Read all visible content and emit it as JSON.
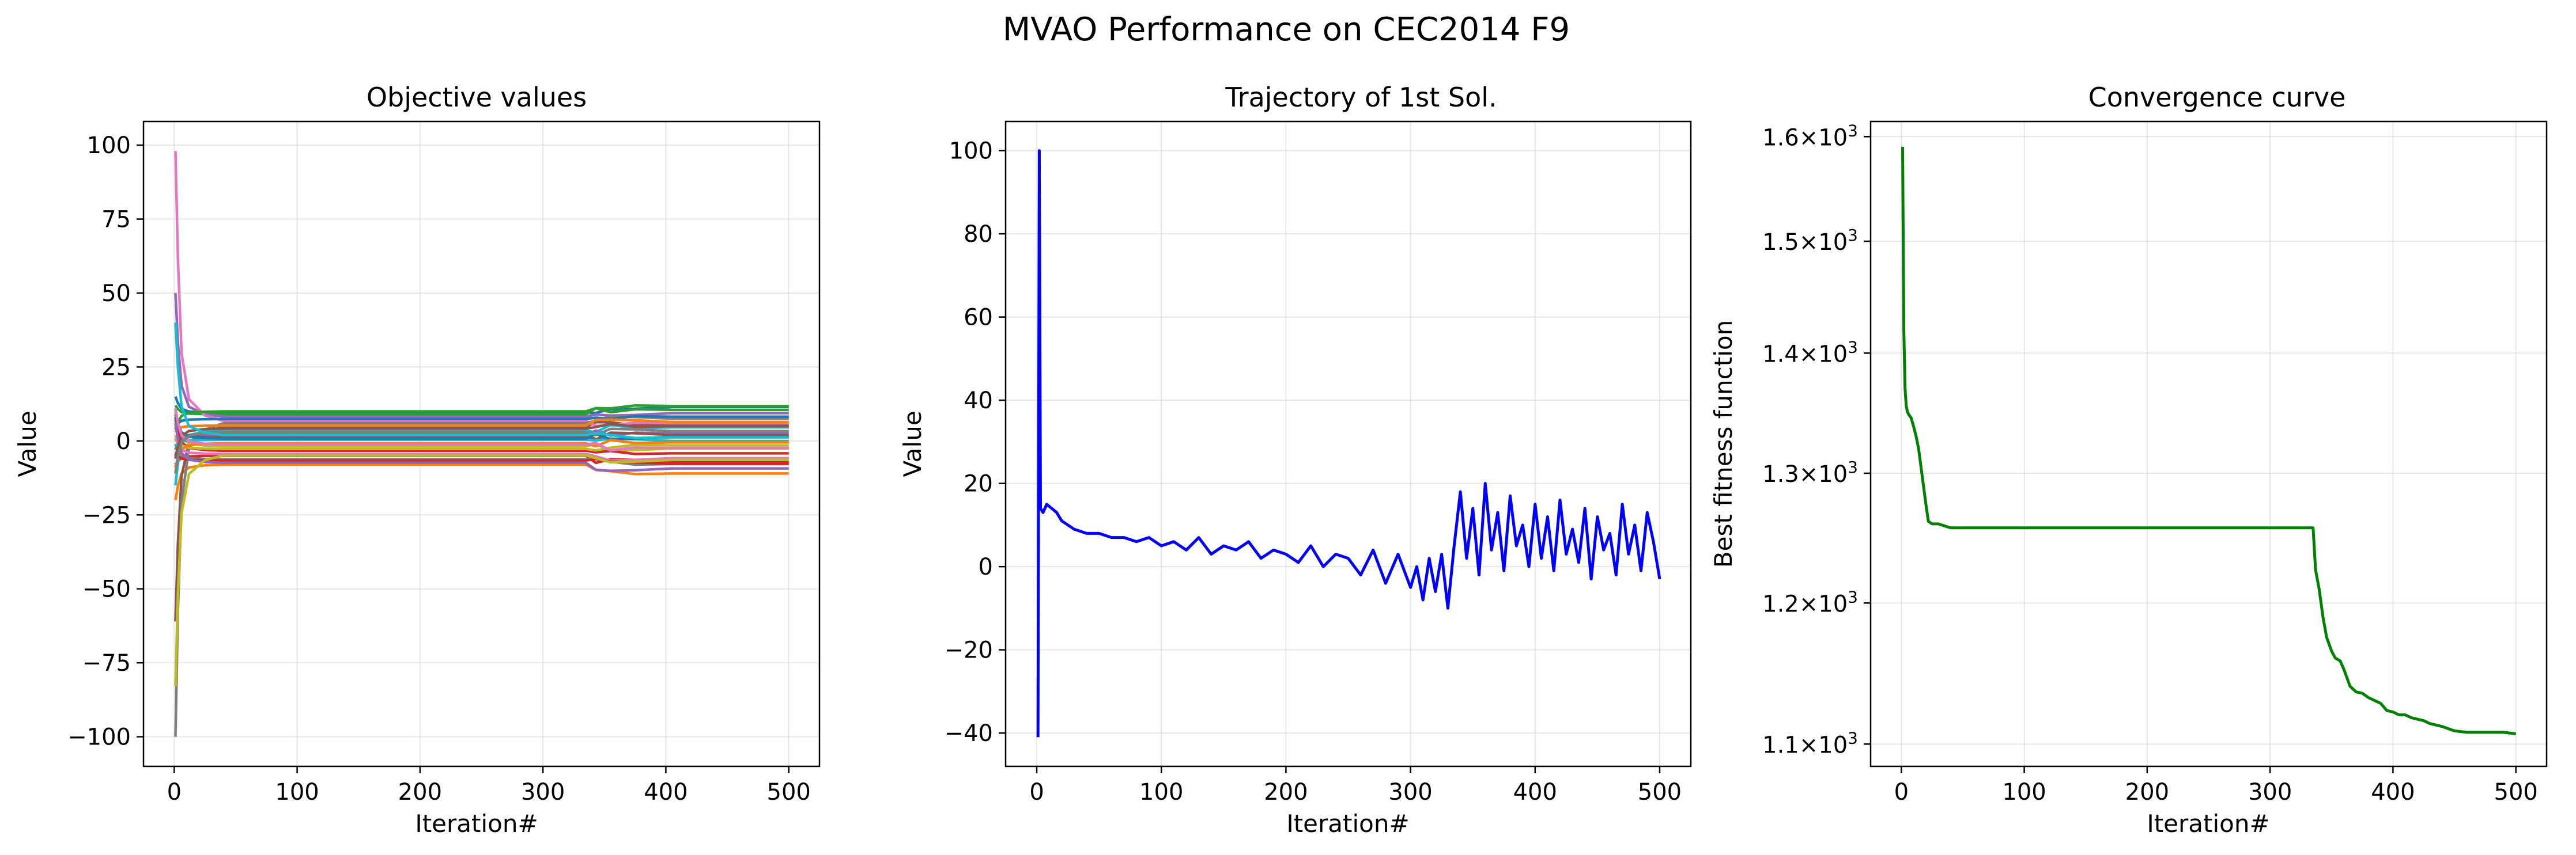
{
  "figure": {
    "suptitle": "MVAO Performance on CEC2014 F9"
  },
  "chart_data": [
    {
      "id": "objective",
      "type": "line",
      "title": "Objective values",
      "xlabel": "Iteration#",
      "ylabel": "Value",
      "xlim": [
        -25,
        525
      ],
      "ylim": [
        -110,
        108
      ],
      "xticks": [
        0,
        100,
        200,
        300,
        400,
        500
      ],
      "xtick_labels": [
        "0",
        "100",
        "200",
        "300",
        "400",
        "500"
      ],
      "yticks": [
        -100,
        -75,
        -50,
        -25,
        0,
        25,
        50,
        75,
        100
      ],
      "ytick_labels": [
        "−100",
        "−75",
        "−50",
        "−25",
        "0",
        "25",
        "50",
        "75",
        "100"
      ],
      "grid": true,
      "series_summary": {
        "dimensions": 30,
        "initial_values": [
          15,
          -20,
          12,
          -8,
          50,
          -61,
          98,
          -100,
          10,
          -15,
          5,
          3,
          -3,
          8,
          -5,
          7,
          1,
          -1,
          2,
          -2,
          9,
          -9,
          4,
          -4,
          6,
          -6,
          11,
          -11,
          -83,
          40
        ],
        "stage1_values": [
          9.5,
          -8,
          9,
          -5,
          8.2,
          4.7,
          6.8,
          6,
          -1.8,
          3.5,
          7.4,
          5.2,
          2.4,
          -3.3,
          1.9,
          1.2,
          -4.4,
          -6.2,
          -2.7,
          0.4,
          0.8,
          -0.8,
          10,
          -6.6,
          -7.4,
          4.2,
          -1.2,
          3,
          -4.9,
          2
        ],
        "final_values": [
          11.5,
          -11,
          10.5,
          -7,
          9.4,
          5.5,
          6,
          7.5,
          -2.5,
          4.6,
          8.2,
          6.4,
          1.4,
          -4.2,
          2.6,
          2,
          -5.8,
          -7.8,
          -1.5,
          0,
          1.4,
          -0.5,
          11.8,
          -7.8,
          -9.3,
          5,
          -2.4,
          3.3,
          -6.4,
          1.2
        ],
        "jump_iteration": 335,
        "colors": [
          "#1f77b4",
          "#ff7f0e",
          "#2ca02c",
          "#d62728",
          "#9467bd",
          "#8c564b",
          "#e377c2",
          "#7f7f7f",
          "#bcbd22",
          "#17becf"
        ]
      }
    },
    {
      "id": "trajectory",
      "type": "line",
      "title": "Trajectory of 1st Sol.",
      "xlabel": "Iteration#",
      "ylabel": "Value",
      "xlim": [
        -25,
        525
      ],
      "ylim": [
        -48,
        107
      ],
      "xticks": [
        0,
        100,
        200,
        300,
        400,
        500
      ],
      "xtick_labels": [
        "0",
        "100",
        "200",
        "300",
        "400",
        "500"
      ],
      "yticks": [
        -40,
        -20,
        0,
        20,
        40,
        60,
        80,
        100
      ],
      "ytick_labels": [
        "−40",
        "−20",
        "0",
        "20",
        "40",
        "60",
        "80",
        "100"
      ],
      "grid": true,
      "color": "#0000ff",
      "series": [
        {
          "x": [
            1,
            2,
            3,
            5,
            8,
            12,
            16,
            20,
            25,
            30,
            40,
            50,
            60,
            70,
            80,
            90,
            100,
            110,
            120,
            130,
            140,
            150,
            160,
            170,
            180,
            190,
            200,
            210,
            220,
            230,
            240,
            250,
            260,
            270,
            280,
            290,
            300,
            305,
            310,
            315,
            320,
            325,
            330,
            335,
            340,
            345,
            350,
            355,
            360,
            365,
            370,
            375,
            380,
            385,
            390,
            395,
            400,
            405,
            410,
            415,
            420,
            425,
            430,
            435,
            440,
            445,
            450,
            455,
            460,
            465,
            470,
            475,
            480,
            485,
            490,
            495,
            500
          ],
          "values": [
            -41,
            100,
            14,
            13,
            15,
            14,
            13,
            11,
            10,
            9,
            8,
            8,
            7,
            7,
            6,
            7,
            5,
            6,
            4,
            7,
            3,
            5,
            4,
            6,
            2,
            4,
            3,
            1,
            5,
            0,
            3,
            2,
            -2,
            4,
            -4,
            3,
            -5,
            0,
            -8,
            2,
            -6,
            3,
            -10,
            5,
            18,
            2,
            14,
            -2,
            20,
            4,
            13,
            -1,
            17,
            5,
            10,
            0,
            15,
            2,
            12,
            -1,
            16,
            3,
            9,
            1,
            14,
            -3,
            12,
            4,
            8,
            -2,
            15,
            3,
            10,
            -1,
            13,
            6,
            -3
          ]
        }
      ]
    },
    {
      "id": "convergence",
      "type": "line",
      "title": "Convergence curve",
      "xlabel": "Iteration#",
      "ylabel": "Best fitness function",
      "xlim": [
        -25,
        525
      ],
      "ylim": [
        1085,
        1615
      ],
      "yscale": "log",
      "xticks": [
        0,
        100,
        200,
        300,
        400,
        500
      ],
      "xtick_labels": [
        "0",
        "100",
        "200",
        "300",
        "400",
        "500"
      ],
      "yticks": [
        1100,
        1200,
        1300,
        1400,
        1500,
        1600
      ],
      "ytick_mantissas": [
        "1.1",
        "1.2",
        "1.3",
        "1.4",
        "1.5",
        "1.6"
      ],
      "ytick_base": "10",
      "ytick_exponent": "3",
      "grid": true,
      "color": "#008000",
      "series": [
        {
          "x": [
            1,
            2,
            3,
            4,
            5,
            6,
            8,
            10,
            12,
            14,
            16,
            18,
            20,
            22,
            25,
            30,
            40,
            60,
            100,
            200,
            300,
            335,
            337,
            340,
            343,
            346,
            350,
            353,
            357,
            360,
            365,
            370,
            375,
            380,
            385,
            390,
            395,
            400,
            405,
            410,
            415,
            420,
            425,
            430,
            440,
            450,
            460,
            470,
            480,
            490,
            500
          ],
          "values": [
            1590,
            1420,
            1370,
            1355,
            1350,
            1348,
            1345,
            1338,
            1330,
            1320,
            1305,
            1290,
            1275,
            1262,
            1260,
            1260,
            1257,
            1257,
            1257,
            1257,
            1257,
            1257,
            1225,
            1210,
            1190,
            1175,
            1165,
            1160,
            1158,
            1152,
            1140,
            1136,
            1135,
            1132,
            1130,
            1128,
            1123,
            1122,
            1120,
            1120,
            1118,
            1117,
            1116,
            1114,
            1112,
            1109,
            1108,
            1108,
            1108,
            1108,
            1107
          ]
        }
      ]
    }
  ]
}
